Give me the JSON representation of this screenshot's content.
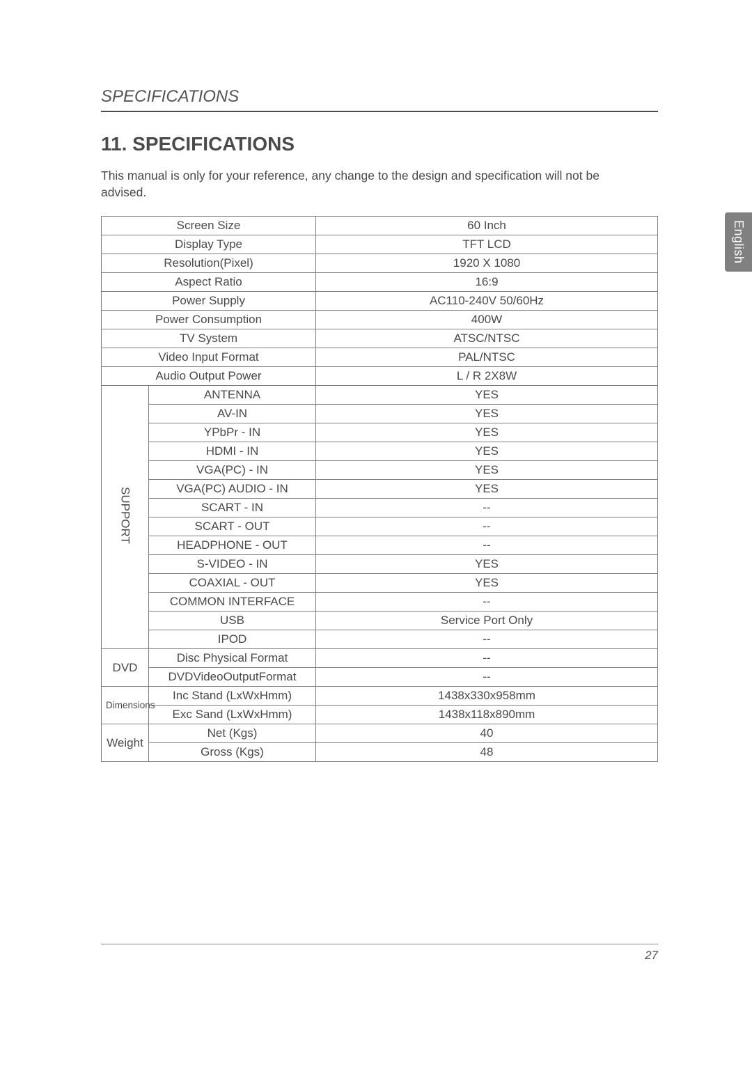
{
  "side_tab": "English",
  "running_head": "SPECIFICATIONS",
  "title": "11. SPECIFICATIONS",
  "intro": "This manual is only for your reference, any change to the design and specification will not be advised.",
  "page_number": "27",
  "basic_rows": [
    {
      "label": "Screen Size",
      "value": "60 Inch"
    },
    {
      "label": "Display Type",
      "value": "TFT LCD"
    },
    {
      "label": "Resolution(Pixel)",
      "value": "1920 X 1080"
    },
    {
      "label": "Aspect Ratio",
      "value": "16:9"
    },
    {
      "label": "Power Supply",
      "value": "AC110-240V  50/60Hz"
    },
    {
      "label": "Power Consumption",
      "value": "400W"
    },
    {
      "label": "TV System",
      "value": "ATSC/NTSC"
    },
    {
      "label": "Video Input Format",
      "value": "PAL/NTSC"
    },
    {
      "label": "Audio Output Power",
      "value": "L / R  2X8W"
    }
  ],
  "support_group": "SUPPORT",
  "support_rows": [
    {
      "label": "ANTENNA",
      "value": "YES"
    },
    {
      "label": "AV-IN",
      "value": "YES"
    },
    {
      "label": "YPbPr - IN",
      "value": "YES"
    },
    {
      "label": "HDMI - IN",
      "value": "YES"
    },
    {
      "label": "VGA(PC) - IN",
      "value": "YES"
    },
    {
      "label": "VGA(PC) AUDIO - IN",
      "value": "YES"
    },
    {
      "label": "SCART - IN",
      "value": "--"
    },
    {
      "label": "SCART - OUT",
      "value": "--"
    },
    {
      "label": "HEADPHONE - OUT",
      "value": "--"
    },
    {
      "label": "S-VIDEO - IN",
      "value": "YES"
    },
    {
      "label": "COAXIAL - OUT",
      "value": "YES"
    },
    {
      "label": "COMMON  INTERFACE",
      "value": "--"
    },
    {
      "label": "USB",
      "value": "Service Port Only"
    },
    {
      "label": "IPOD",
      "value": "--"
    }
  ],
  "dvd_group": "DVD",
  "dvd_rows": [
    {
      "label": "Disc Physical Format",
      "value": "--"
    },
    {
      "label": "DVDVideoOutputFormat",
      "value": "--"
    }
  ],
  "dim_group": "Dimensions",
  "dim_rows": [
    {
      "label": "Inc Stand  (LxWxHmm)",
      "value": "1438x330x958mm"
    },
    {
      "label": "Exc Sand (LxWxHmm)",
      "value": "1438x118x890mm"
    }
  ],
  "weight_group": "Weight",
  "weight_rows": [
    {
      "label": "Net (Kgs)",
      "value": "40"
    },
    {
      "label": "Gross (Kgs)",
      "value": "48"
    }
  ]
}
